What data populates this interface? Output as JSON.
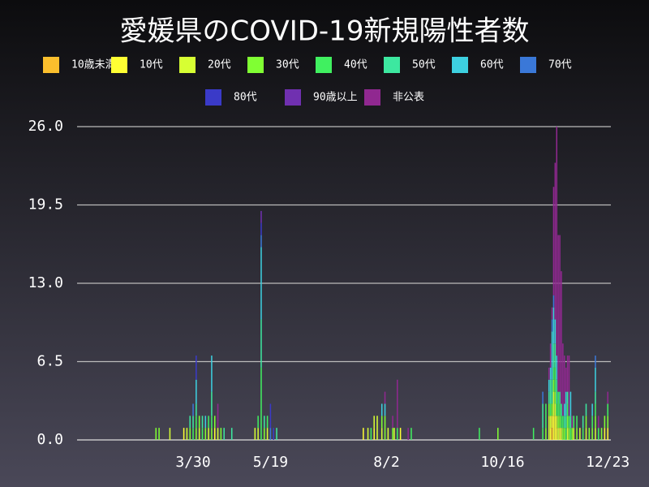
{
  "chart_data": {
    "type": "stacked_bar",
    "title": "愛媛県のCOVID-19新規陽性者数",
    "x": [
      66,
      68,
      75,
      84,
      86,
      88,
      90,
      92,
      94,
      96,
      98,
      100,
      102,
      104,
      106,
      108,
      110,
      115,
      130,
      132,
      134,
      136,
      138,
      140,
      142,
      144,
      200,
      203,
      205,
      207,
      209,
      212,
      214,
      216,
      219,
      220,
      222,
      224,
      229,
      231,
      275,
      287,
      310,
      316,
      318,
      320,
      321,
      322,
      323,
      324,
      325,
      326,
      327,
      328,
      329,
      330,
      331,
      332,
      333,
      334,
      335,
      336,
      338,
      340,
      342,
      344,
      346,
      348,
      350,
      352,
      354,
      356,
      358
    ],
    "xlim": [
      15,
      360
    ],
    "xticks": [
      {
        "value": 90,
        "label": "3/30"
      },
      {
        "value": 140,
        "label": "5/19"
      },
      {
        "value": 215,
        "label": "8/2"
      },
      {
        "value": 290,
        "label": "10/16"
      },
      {
        "value": 358,
        "label": "12/23"
      }
    ],
    "ylim": [
      0,
      26
    ],
    "yticks": [
      {
        "value": 0,
        "label": "0.0"
      },
      6.5,
      {
        "value": 13,
        "label": "13.0"
      },
      19.5,
      {
        "value": 26,
        "label": "26.0"
      }
    ],
    "grid": true,
    "series": [
      {
        "name": "10歳未満",
        "color": "#fbbf2d",
        "values": [
          0,
          0,
          0,
          0,
          0,
          0,
          0,
          0,
          0,
          0,
          0,
          0,
          0,
          0,
          0,
          0,
          0,
          0,
          0,
          0,
          0,
          0,
          0,
          0,
          0,
          0,
          0,
          0,
          0,
          0,
          0,
          0,
          0,
          0,
          0,
          0,
          0,
          0,
          0,
          0,
          0,
          0,
          0,
          0,
          0,
          0,
          0,
          1,
          0,
          0,
          0,
          0,
          0,
          0,
          0,
          0,
          0,
          0,
          0,
          0,
          0,
          0,
          0,
          0,
          0,
          0,
          0,
          0,
          0,
          0,
          0,
          0,
          0
        ]
      },
      {
        "name": "10代",
        "color": "#ffff33",
        "values": [
          0,
          0,
          0,
          1,
          0,
          0,
          0,
          0,
          0,
          0,
          0,
          0,
          0,
          1,
          0,
          0,
          0,
          0,
          0,
          0,
          0,
          0,
          0,
          0,
          0,
          0,
          1,
          0,
          0,
          1,
          0,
          0,
          0,
          0,
          0,
          0,
          0,
          1,
          0,
          0,
          0,
          0,
          0,
          0,
          0,
          0,
          1,
          1,
          2,
          2,
          1,
          0,
          1,
          0,
          0,
          0,
          0,
          0,
          0,
          0,
          0,
          0,
          0,
          0,
          0,
          0,
          0,
          0,
          0,
          0,
          0,
          1,
          1
        ]
      },
      {
        "name": "20代",
        "color": "#d7ff33",
        "values": [
          0,
          0,
          1,
          0,
          1,
          0,
          0,
          0,
          1,
          0,
          0,
          1,
          0,
          0,
          1,
          0,
          0,
          0,
          1,
          1,
          0,
          0,
          1,
          0,
          0,
          0,
          0,
          1,
          0,
          1,
          2,
          1,
          0,
          1,
          0,
          1,
          0,
          0,
          0,
          0,
          0,
          0,
          0,
          0,
          0,
          2,
          1,
          0,
          2,
          1,
          1,
          1,
          0,
          1,
          0,
          0,
          0,
          1,
          0,
          0,
          0,
          1,
          0,
          1,
          0,
          1,
          0,
          0,
          1,
          0,
          0,
          0,
          0
        ]
      },
      {
        "name": "30代",
        "color": "#80ff33",
        "values": [
          1,
          1,
          0,
          0,
          0,
          1,
          0,
          1,
          1,
          0,
          1,
          0,
          1,
          1,
          0,
          1,
          0,
          0,
          0,
          0,
          0,
          1,
          0,
          0,
          0,
          0,
          0,
          0,
          0,
          0,
          0,
          1,
          2,
          0,
          1,
          0,
          0,
          0,
          0,
          0,
          0,
          1,
          0,
          0,
          1,
          1,
          0,
          1,
          1,
          1,
          0,
          1,
          1,
          0,
          1,
          1,
          0,
          1,
          1,
          0,
          1,
          0,
          1,
          0,
          0,
          1,
          1,
          1,
          1,
          0,
          1,
          1,
          1
        ]
      },
      {
        "name": "40代",
        "color": "#40f060",
        "values": [
          0,
          0,
          0,
          0,
          0,
          0,
          1,
          1,
          0,
          1,
          0,
          1,
          1,
          0,
          0,
          0,
          0,
          0,
          0,
          1,
          6,
          0,
          1,
          0,
          0,
          0,
          0,
          0,
          1,
          0,
          0,
          0,
          0,
          0,
          0,
          0,
          1,
          0,
          0,
          1,
          1,
          0,
          1,
          1,
          2,
          0,
          1,
          0,
          1,
          2,
          1,
          2,
          1,
          1,
          1,
          0,
          1,
          1,
          1,
          1,
          0,
          1,
          1,
          0,
          1,
          0,
          0,
          1,
          1,
          1,
          0,
          0,
          1
        ]
      },
      {
        "name": "50代",
        "color": "#3de8a0",
        "values": [
          0,
          0,
          0,
          0,
          0,
          1,
          1,
          1,
          0,
          1,
          0,
          0,
          2,
          0,
          0,
          0,
          1,
          1,
          0,
          0,
          4,
          1,
          0,
          0,
          0,
          1,
          0,
          0,
          0,
          0,
          0,
          0,
          0,
          0,
          0,
          0,
          0,
          0,
          0,
          0,
          0,
          0,
          0,
          2,
          0,
          1,
          2,
          2,
          2,
          2,
          2,
          0,
          1,
          1,
          0,
          1,
          1,
          1,
          0,
          1,
          0,
          0,
          0,
          0,
          1,
          1,
          0,
          0,
          1,
          0,
          0,
          0,
          0
        ]
      },
      {
        "name": "60代",
        "color": "#3dd0e0",
        "values": [
          0,
          0,
          0,
          0,
          0,
          0,
          0,
          2,
          0,
          0,
          1,
          0,
          3,
          0,
          0,
          0,
          0,
          0,
          0,
          0,
          6,
          0,
          0,
          0,
          0,
          0,
          0,
          0,
          0,
          0,
          0,
          1,
          1,
          0,
          0,
          0,
          0,
          0,
          0,
          0,
          0,
          0,
          0,
          0,
          0,
          1,
          1,
          4,
          3,
          2,
          2,
          0,
          0,
          0,
          0,
          1,
          2,
          0,
          0,
          2,
          0,
          0,
          0,
          0,
          0,
          0,
          0,
          1,
          2,
          0,
          0,
          0,
          0
        ]
      },
      {
        "name": "70代",
        "color": "#3a78d8",
        "values": [
          0,
          0,
          0,
          0,
          0,
          0,
          1,
          0,
          0,
          0,
          0,
          0,
          0,
          0,
          0,
          0,
          0,
          0,
          0,
          0,
          1,
          0,
          0,
          1,
          0,
          0,
          0,
          0,
          0,
          0,
          0,
          0,
          0,
          0,
          0,
          0,
          0,
          0,
          0,
          0,
          0,
          0,
          0,
          1,
          0,
          0,
          0,
          1,
          1,
          0,
          0,
          0,
          0,
          0,
          0,
          0,
          0,
          0,
          0,
          0,
          0,
          0,
          0,
          0,
          0,
          0,
          0,
          0,
          1,
          0,
          0,
          0,
          0
        ]
      },
      {
        "name": "80代",
        "color": "#3a3ac8",
        "values": [
          0,
          0,
          0,
          0,
          0,
          0,
          0,
          2,
          0,
          0,
          0,
          0,
          0,
          0,
          0,
          0,
          0,
          0,
          0,
          0,
          1,
          0,
          0,
          2,
          1,
          0,
          0,
          0,
          0,
          0,
          0,
          0,
          0,
          0,
          0,
          0,
          0,
          0,
          0,
          0,
          0,
          0,
          0,
          0,
          0,
          0,
          0,
          0,
          0,
          0,
          0,
          0,
          0,
          0,
          0,
          0,
          0,
          0,
          0,
          0,
          0,
          0,
          0,
          0,
          0,
          0,
          0,
          0,
          0,
          0,
          0,
          0,
          0
        ]
      },
      {
        "name": "90歳以上",
        "color": "#7030b0",
        "values": [
          0,
          0,
          0,
          0,
          0,
          0,
          0,
          0,
          0,
          0,
          0,
          0,
          0,
          0,
          0,
          0,
          0,
          0,
          0,
          0,
          1,
          0,
          0,
          0,
          0,
          0,
          0,
          0,
          0,
          0,
          0,
          0,
          0,
          0,
          0,
          0,
          0,
          0,
          0,
          0,
          0,
          0,
          0,
          0,
          0,
          0,
          0,
          0,
          0,
          0,
          0,
          0,
          0,
          0,
          0,
          0,
          0,
          0,
          0,
          0,
          0,
          0,
          0,
          0,
          0,
          0,
          0,
          0,
          0,
          0,
          0,
          0,
          0
        ]
      },
      {
        "name": "非公表",
        "color": "#902890",
        "values": [
          0,
          0,
          0,
          0,
          0,
          0,
          0,
          0,
          0,
          0,
          0,
          0,
          0,
          0,
          2,
          0,
          0,
          0,
          0,
          0,
          0,
          0,
          0,
          0,
          0,
          0,
          0,
          0,
          0,
          0,
          0,
          0,
          1,
          0,
          1,
          0,
          4,
          0,
          1,
          0,
          0,
          0,
          0,
          0,
          0,
          1,
          2,
          1,
          9,
          13,
          19,
          13,
          13,
          11,
          6,
          4,
          2,
          3,
          5,
          0,
          1,
          0,
          0,
          0,
          0,
          0,
          0,
          0,
          0,
          1,
          0,
          0,
          1
        ]
      }
    ]
  }
}
